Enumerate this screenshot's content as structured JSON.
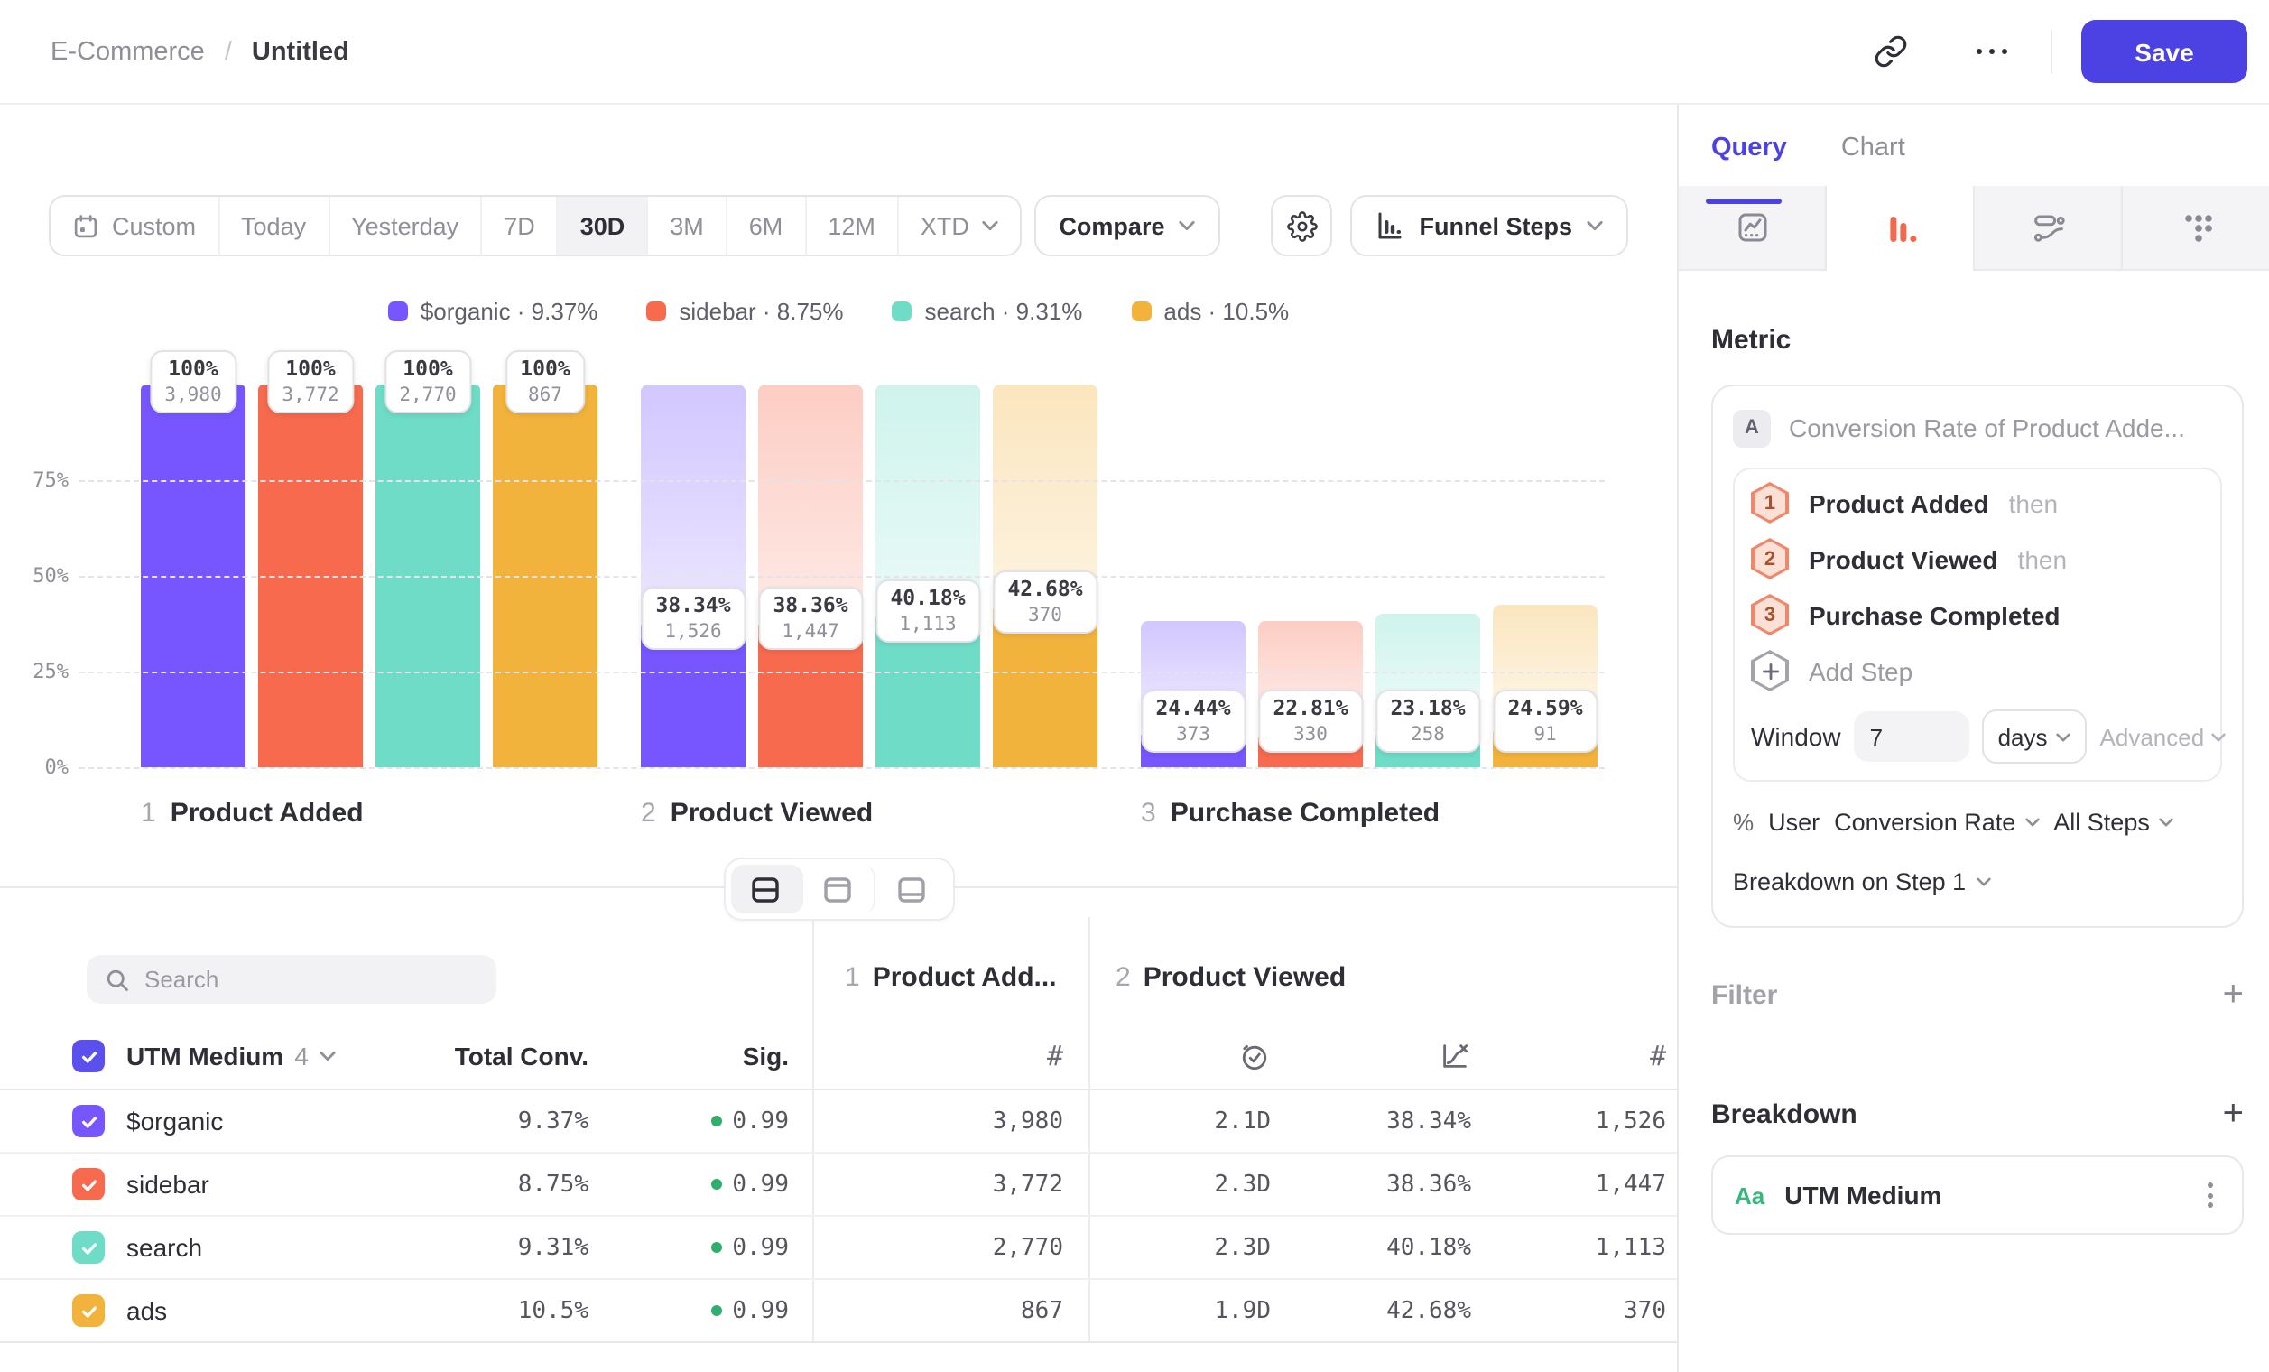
{
  "header": {
    "crumb_parent": "E-Commerce",
    "crumb_sep": "/",
    "crumb_current": "Untitled",
    "save_label": "Save"
  },
  "toolbar": {
    "ranges": [
      "Custom",
      "Today",
      "Yesterday",
      "7D",
      "30D",
      "3M",
      "6M",
      "12M",
      "XTD"
    ],
    "active_range": "30D",
    "compare_label": "Compare",
    "view_label": "Funnel Steps"
  },
  "legend": {
    "separator": "·",
    "items": [
      {
        "name": "$organic",
        "value": "9.37%",
        "color": "#7856FF"
      },
      {
        "name": "sidebar",
        "value": "8.75%",
        "color": "#F76A4D"
      },
      {
        "name": "search",
        "value": "9.31%",
        "color": "#6FDCC7"
      },
      {
        "name": "ads",
        "value": "10.5%",
        "color": "#F2B33C"
      }
    ]
  },
  "chart_data": {
    "type": "bar",
    "subtype": "funnel-steps",
    "title": "",
    "ylim": [
      0,
      100
    ],
    "grid": true,
    "y_ticks": [
      {
        "label": "75%",
        "value": 75
      },
      {
        "label": "50%",
        "value": 50
      },
      {
        "label": "25%",
        "value": 25
      },
      {
        "label": "0%",
        "value": 0
      }
    ],
    "series": [
      {
        "name": "$organic",
        "color": "#7856FF"
      },
      {
        "name": "sidebar",
        "color": "#F76A4D"
      },
      {
        "name": "search",
        "color": "#6FDCC7"
      },
      {
        "name": "ads",
        "color": "#F2B33C"
      }
    ],
    "steps": [
      {
        "num": "1",
        "label": "Product Added",
        "bars": [
          {
            "pct": 100,
            "pct_label": "100%",
            "count": "3,980",
            "ghost_pct": 0
          },
          {
            "pct": 100,
            "pct_label": "100%",
            "count": "3,772",
            "ghost_pct": 0
          },
          {
            "pct": 100,
            "pct_label": "100%",
            "count": "2,770",
            "ghost_pct": 0
          },
          {
            "pct": 100,
            "pct_label": "100%",
            "count": "867",
            "ghost_pct": 0
          }
        ]
      },
      {
        "num": "2",
        "label": "Product Viewed",
        "bars": [
          {
            "pct": 38.34,
            "pct_label": "38.34%",
            "count": "1,526",
            "ghost_pct": 100
          },
          {
            "pct": 38.36,
            "pct_label": "38.36%",
            "count": "1,447",
            "ghost_pct": 100
          },
          {
            "pct": 40.18,
            "pct_label": "40.18%",
            "count": "1,113",
            "ghost_pct": 100
          },
          {
            "pct": 42.68,
            "pct_label": "42.68%",
            "count": "370",
            "ghost_pct": 100
          }
        ]
      },
      {
        "num": "3",
        "label": "Purchase Completed",
        "bars": [
          {
            "pct": 9.37,
            "pct_label": "24.44%",
            "count": "373",
            "ghost_pct": 38.34
          },
          {
            "pct": 8.75,
            "pct_label": "22.81%",
            "count": "330",
            "ghost_pct": 38.36
          },
          {
            "pct": 9.31,
            "pct_label": "23.18%",
            "count": "258",
            "ghost_pct": 40.18
          },
          {
            "pct": 10.5,
            "pct_label": "24.59%",
            "count": "91",
            "ghost_pct": 42.68
          }
        ]
      }
    ]
  },
  "table": {
    "search_placeholder": "Search",
    "header": {
      "name": "UTM Medium",
      "count": "4",
      "total": "Total Conv.",
      "sig": "Sig."
    },
    "icons": {
      "count": "#"
    },
    "groups": [
      {
        "num": "1",
        "label": "Product Add..."
      },
      {
        "num": "2",
        "label": "Product Viewed"
      }
    ],
    "rows": [
      {
        "name": "$organic",
        "color": "#7856FF",
        "total": "9.37%",
        "sig": "0.99",
        "step1_count": "3,980",
        "time": "2.1D",
        "rate": "38.34%",
        "count": "1,526"
      },
      {
        "name": "sidebar",
        "color": "#F76A4D",
        "total": "8.75%",
        "sig": "0.99",
        "step1_count": "3,772",
        "time": "2.3D",
        "rate": "38.36%",
        "count": "1,447"
      },
      {
        "name": "search",
        "color": "#6FDCC7",
        "total": "9.31%",
        "sig": "0.99",
        "step1_count": "2,770",
        "time": "2.3D",
        "rate": "40.18%",
        "count": "1,113"
      },
      {
        "name": "ads",
        "color": "#F2B33C",
        "total": "10.5%",
        "sig": "0.99",
        "step1_count": "867",
        "time": "1.9D",
        "rate": "42.68%",
        "count": "370"
      }
    ]
  },
  "panel": {
    "tabs": {
      "query": "Query",
      "chart": "Chart"
    },
    "metric": {
      "heading": "Metric",
      "series_badge": "A",
      "title": "Conversion Rate of Product Adde...",
      "steps": [
        {
          "num": "1",
          "label": "Product Added",
          "suffix": "then"
        },
        {
          "num": "2",
          "label": "Product Viewed",
          "suffix": "then"
        },
        {
          "num": "3",
          "label": "Purchase Completed",
          "suffix": ""
        }
      ],
      "add_step": "Add Step",
      "window": {
        "label": "Window",
        "value": "7",
        "unit": "days",
        "advanced": "Advanced"
      },
      "measure": {
        "symbol": "%",
        "entity": "User",
        "metric": "Conversion Rate",
        "scope": "All Steps"
      },
      "breakdown_on": "Breakdown on Step 1"
    },
    "filter": {
      "label": "Filter",
      "add": "+"
    },
    "breakdown": {
      "label": "Breakdown",
      "add": "+",
      "items": [
        {
          "badge": "Aa",
          "name": "UTM Medium"
        }
      ]
    }
  },
  "colors": {
    "accent": "#4C41E2",
    "sig_green": "#2FAE6E",
    "aa_green": "#34B87C",
    "header_checkbox": "#5B4FEE",
    "active_tab_icon": "#F4694C"
  }
}
